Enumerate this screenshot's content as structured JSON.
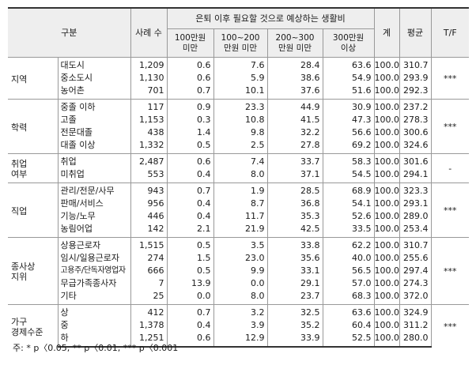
{
  "header": {
    "category": "구분",
    "cases": "사례 수",
    "group_title": "은퇴 이후 필요할 것으로 예상하는 생활비",
    "col1": [
      "100만원",
      "미만"
    ],
    "col2": [
      "100~200",
      "만원 미만"
    ],
    "col3": [
      "200~300",
      "만원 미만"
    ],
    "col4": [
      "300만원",
      "이상"
    ],
    "total": "계",
    "mean": "평균",
    "tf": "T/F"
  },
  "groups": [
    {
      "label": [
        "지역"
      ],
      "tf": "***",
      "rows": [
        {
          "name": "대도시",
          "n": "1,209",
          "v": [
            "0.6",
            "7.6",
            "28.4",
            "63.6",
            "100.0",
            "310.7"
          ]
        },
        {
          "name": "중소도시",
          "n": "1,130",
          "v": [
            "0.6",
            "5.9",
            "38.6",
            "54.9",
            "100.0",
            "293.9"
          ]
        },
        {
          "name": "농어촌",
          "n": "701",
          "v": [
            "0.7",
            "10.1",
            "37.6",
            "51.6",
            "100.0",
            "292.3"
          ]
        }
      ]
    },
    {
      "label": [
        "학력"
      ],
      "tf": "***",
      "rows": [
        {
          "name": "중졸 이하",
          "n": "117",
          "v": [
            "0.9",
            "23.3",
            "44.9",
            "30.9",
            "100.0",
            "237.2"
          ]
        },
        {
          "name": "고졸",
          "n": "1,153",
          "v": [
            "0.3",
            "10.8",
            "41.5",
            "47.3",
            "100.0",
            "278.3"
          ]
        },
        {
          "name": "전문대졸",
          "n": "438",
          "v": [
            "1.4",
            "9.8",
            "32.2",
            "56.6",
            "100.0",
            "300.6"
          ]
        },
        {
          "name": "대졸 이상",
          "n": "1,332",
          "v": [
            "0.5",
            "2.5",
            "27.8",
            "69.2",
            "100.0",
            "324.6"
          ]
        }
      ]
    },
    {
      "label": [
        "취업",
        "여부"
      ],
      "tf": "-",
      "rows": [
        {
          "name": "취업",
          "n": "2,487",
          "v": [
            "0.6",
            "7.4",
            "33.7",
            "58.3",
            "100.0",
            "301.6"
          ]
        },
        {
          "name": "미취업",
          "n": "553",
          "v": [
            "0.4",
            "8.0",
            "37.1",
            "54.5",
            "100.0",
            "294.1"
          ]
        }
      ]
    },
    {
      "label": [
        "직업"
      ],
      "tf": "***",
      "rows": [
        {
          "name": "관리/전문/사무",
          "n": "943",
          "v": [
            "0.7",
            "1.9",
            "28.5",
            "68.9",
            "100.0",
            "323.3"
          ]
        },
        {
          "name": "판매/서비스",
          "n": "956",
          "v": [
            "0.4",
            "8.7",
            "36.8",
            "54.1",
            "100.0",
            "293.1"
          ]
        },
        {
          "name": "기능/노무",
          "n": "446",
          "v": [
            "0.4",
            "11.7",
            "35.3",
            "52.6",
            "100.0",
            "289.0"
          ]
        },
        {
          "name": "농림어업",
          "n": "142",
          "v": [
            "2.1",
            "21.9",
            "42.5",
            "33.5",
            "100.0",
            "253.4"
          ]
        }
      ]
    },
    {
      "label": [
        "종사상",
        "지위"
      ],
      "tf": "***",
      "rows": [
        {
          "name": "상용근로자",
          "n": "1,515",
          "v": [
            "0.5",
            "3.5",
            "33.8",
            "62.2",
            "100.0",
            "310.7"
          ]
        },
        {
          "name": "임시/일용근로자",
          "n": "274",
          "v": [
            "1.5",
            "23.0",
            "35.6",
            "40.0",
            "100.0",
            "255.6"
          ]
        },
        {
          "name": "고용주/단독자영업자",
          "n": "666",
          "v": [
            "0.5",
            "9.9",
            "33.1",
            "56.5",
            "100.0",
            "297.4"
          ]
        },
        {
          "name": "무급가족종사자",
          "n": "7",
          "v": [
            "13.9",
            "0.0",
            "29.1",
            "57.0",
            "100.0",
            "274.3"
          ]
        },
        {
          "name": "기타",
          "n": "25",
          "v": [
            "0.0",
            "8.0",
            "23.7",
            "68.3",
            "100.0",
            "372.0"
          ]
        }
      ]
    },
    {
      "label": [
        "가구",
        "경제수준"
      ],
      "tf": "***",
      "rows": [
        {
          "name": "상",
          "n": "412",
          "v": [
            "0.7",
            "3.2",
            "32.5",
            "63.6",
            "100.0",
            "324.9"
          ]
        },
        {
          "name": "중",
          "n": "1,378",
          "v": [
            "0.4",
            "3.9",
            "35.2",
            "60.4",
            "100.0",
            "311.2"
          ]
        },
        {
          "name": "하",
          "n": "1,251",
          "v": [
            "0.6",
            "12.9",
            "33.9",
            "52.5",
            "100.0",
            "280.0"
          ]
        }
      ]
    }
  ],
  "note": "주: * p〈0.05, ** p〈0.01, *** p〈0.001"
}
